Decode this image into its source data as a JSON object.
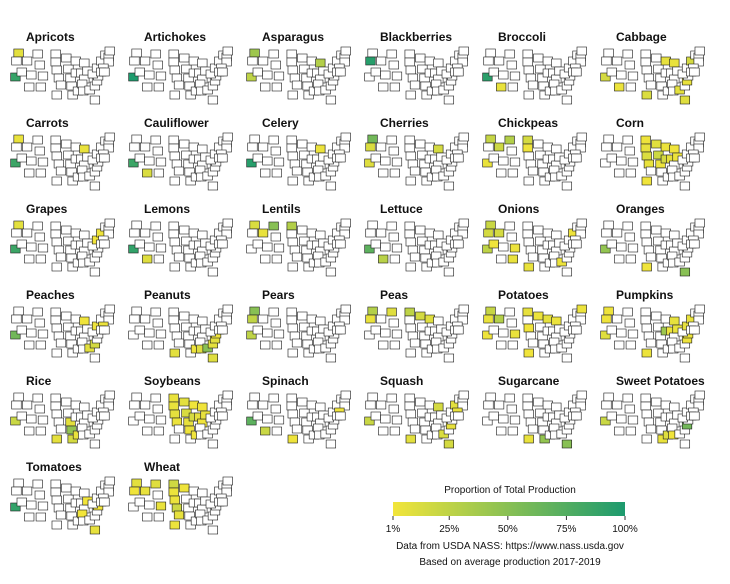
{
  "chart_data": {
    "type": "choropleth",
    "crops": [
      {
        "name": "Apricots",
        "values": {
          "CA": 88,
          "WA": 8
        }
      },
      {
        "name": "Artichokes",
        "values": {
          "CA": 99
        }
      },
      {
        "name": "Asparagus",
        "values": {
          "CA": 25,
          "MI": 30,
          "WA": 40
        }
      },
      {
        "name": "Blackberries",
        "values": {
          "OR": 95
        }
      },
      {
        "name": "Broccoli",
        "values": {
          "CA": 93,
          "AZ": 5
        }
      },
      {
        "name": "Cabbage",
        "values": {
          "CA": 15,
          "NY": 15,
          "TX": 12,
          "FL": 10,
          "GA": 8,
          "WI": 6,
          "MI": 5,
          "NC": 5,
          "AZ": 4
        }
      },
      {
        "name": "Carrots",
        "values": {
          "CA": 85,
          "WA": 5,
          "MI": 5
        }
      },
      {
        "name": "Cauliflower",
        "values": {
          "CA": 85,
          "AZ": 12
        }
      },
      {
        "name": "Celery",
        "values": {
          "CA": 95,
          "MI": 4
        }
      },
      {
        "name": "Cherries",
        "values": {
          "WA": 60,
          "OR": 12,
          "CA": 10,
          "MI": 15
        }
      },
      {
        "name": "Chickpeas",
        "values": {
          "WA": 22,
          "MT": 30,
          "ID": 18,
          "ND": 15,
          "SD": 3,
          "CA": 5
        }
      },
      {
        "name": "Corn",
        "values": {
          "IA": 18,
          "IL": 15,
          "NE": 12,
          "MN": 9,
          "IN": 7,
          "SD": 6,
          "KS": 5,
          "OH": 4,
          "WI": 4,
          "MO": 4,
          "ND": 3,
          "MI": 2,
          "TX": 2
        }
      },
      {
        "name": "Grapes",
        "values": {
          "CA": 85,
          "WA": 8,
          "NY": 3,
          "PA": 1
        }
      },
      {
        "name": "Lemons",
        "values": {
          "CA": 90,
          "AZ": 10
        }
      },
      {
        "name": "Lentils",
        "values": {
          "MT": 50,
          "ND": 30,
          "WA": 12,
          "ID": 5
        }
      },
      {
        "name": "Lettuce",
        "values": {
          "CA": 70,
          "AZ": 28
        }
      },
      {
        "name": "Onions",
        "values": {
          "WA": 20,
          "ID": 15,
          "OR": 15,
          "CA": 25,
          "TX": 5,
          "NM": 5,
          "CO": 4,
          "NY": 3,
          "GA": 4,
          "NV": 2
        }
      },
      {
        "name": "Oranges",
        "values": {
          "CA": 45,
          "FL": 50,
          "TX": 2
        }
      },
      {
        "name": "Peaches",
        "values": {
          "CA": 60,
          "GA": 8,
          "SC": 15,
          "NJ": 4,
          "PA": 3,
          "MI": 2
        }
      },
      {
        "name": "Peanuts",
        "values": {
          "GA": 50,
          "AL": 10,
          "FL": 10,
          "TX": 8,
          "SC": 7,
          "NC": 8,
          "MS": 3,
          "VA": 2
        }
      },
      {
        "name": "Pears",
        "values": {
          "WA": 50,
          "CA": 25,
          "OR": 24
        }
      },
      {
        "name": "Peas",
        "values": {
          "WA": 30,
          "ND": 25,
          "MN": 15,
          "WI": 10,
          "OR": 5,
          "MT": 10
        }
      },
      {
        "name": "Potatoes",
        "values": {
          "ID": 30,
          "WA": 22,
          "ND": 6,
          "WI": 7,
          "CO": 5,
          "MN": 4,
          "OR": 5,
          "MI": 4,
          "ME": 4,
          "CA": 3,
          "TX": 2,
          "NE": 2
        }
      },
      {
        "name": "Pumpkins",
        "values": {
          "IL": 40,
          "CA": 10,
          "OH": 5,
          "PA": 6,
          "MI": 6,
          "NY": 5,
          "IN": 4,
          "VA": 4,
          "TX": 4,
          "NC": 3,
          "WA": 3,
          "OR": 3
        }
      },
      {
        "name": "Rice",
        "values": {
          "AR": 45,
          "CA": 20,
          "LA": 15,
          "MO": 8,
          "TX": 7,
          "MS": 5
        }
      },
      {
        "name": "Soybeans",
        "values": {
          "IL": 14,
          "IA": 13,
          "MN": 8,
          "NE": 7,
          "IN": 7,
          "OH": 6,
          "MO": 6,
          "ND": 5,
          "SD": 5,
          "KS": 4,
          "AR": 3,
          "MI": 2,
          "WI": 2,
          "MS": 2,
          "KY": 2
        }
      },
      {
        "name": "Spinach",
        "values": {
          "CA": 70,
          "AZ": 20,
          "TX": 3,
          "NJ": 2
        }
      },
      {
        "name": "Squash",
        "values": {
          "CA": 20,
          "FL": 15,
          "GA": 12,
          "MI": 15,
          "TX": 8,
          "NY": 8,
          "NC": 6,
          "NJ": 5
        }
      },
      {
        "name": "Sugarcane",
        "values": {
          "FL": 50,
          "LA": 45,
          "TX": 5
        }
      },
      {
        "name": "Sweet Potatoes",
        "values": {
          "NC": 60,
          "CA": 20,
          "MS": 10,
          "LA": 5,
          "AL": 2
        }
      },
      {
        "name": "Tomatoes",
        "values": {
          "CA": 90,
          "FL": 6,
          "VA": 1,
          "TN": 1,
          "OH": 1
        }
      },
      {
        "name": "Wheat",
        "values": {
          "KS": 18,
          "ND": 17,
          "MT": 10,
          "WA": 8,
          "OK": 6,
          "ID": 5,
          "CO": 5,
          "NE": 4,
          "SD": 4,
          "TX": 4,
          "MN": 3,
          "OR": 2
        }
      }
    ],
    "legend": {
      "title": "Proportion of Total Production",
      "colors": [
        "#f2e53a",
        "#1c9a6e"
      ],
      "lim": [
        1,
        100
      ],
      "ticks": [
        {
          "value": 1,
          "label": "1%"
        },
        {
          "value": 25,
          "label": "25%"
        },
        {
          "value": 50,
          "label": "50%"
        },
        {
          "value": 75,
          "label": "75%"
        },
        {
          "value": 100,
          "label": "100%"
        }
      ]
    },
    "source": [
      "Data from USDA NASS: https://www.nass.usda.gov",
      "Based on average production 2017-2019"
    ]
  }
}
